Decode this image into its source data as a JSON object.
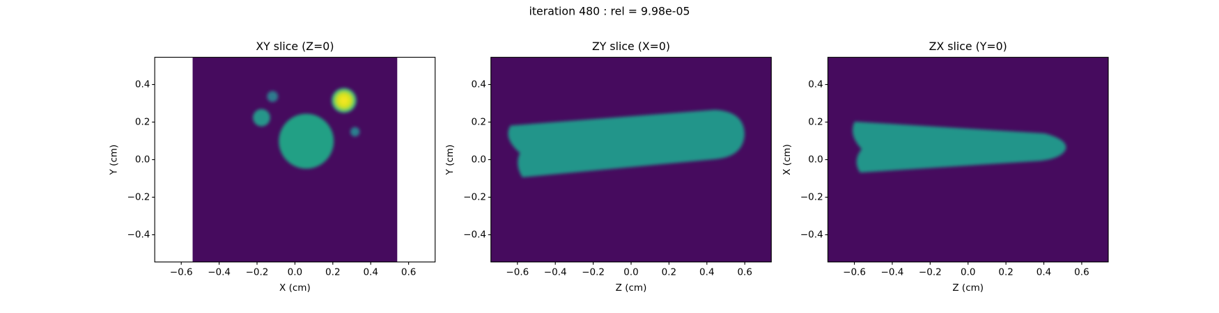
{
  "title": "iteration 480 : rel = 9.98e-05",
  "chart_data": [
    {
      "type": "image",
      "title": "XY slice (Z=0)",
      "xlabel": "X (cm)",
      "ylabel": "Y (cm)",
      "xlim": [
        -0.74,
        0.74
      ],
      "ylim": [
        -0.545,
        0.545
      ],
      "extent": [
        -0.54,
        0.54,
        -0.545,
        0.545
      ],
      "xticks": [
        {
          "value": -0.6,
          "label": "−0.6"
        },
        {
          "value": -0.4,
          "label": "−0.4"
        },
        {
          "value": -0.2,
          "label": "−0.2"
        },
        {
          "value": 0,
          "label": "0.0"
        },
        0.2,
        0.4,
        0.6
      ],
      "yticks": [
        {
          "value": -0.4,
          "label": "−0.4"
        },
        {
          "value": -0.2,
          "label": "−0.2"
        },
        {
          "value": 0,
          "label": "0.0"
        },
        0.2,
        0.4
      ]
    },
    {
      "type": "image",
      "title": "ZY slice (X=0)",
      "xlabel": "Z (cm)",
      "ylabel": "Y (cm)",
      "xlim": [
        -0.74,
        0.74
      ],
      "ylim": [
        -0.545,
        0.545
      ],
      "extent": [
        -0.74,
        0.74,
        -0.545,
        0.545
      ],
      "xticks": [
        {
          "value": -0.6,
          "label": "−0.6"
        },
        {
          "value": -0.4,
          "label": "−0.4"
        },
        {
          "value": -0.2,
          "label": "−0.2"
        },
        {
          "value": 0,
          "label": "0.0"
        },
        0.2,
        0.4,
        0.6
      ],
      "yticks": [
        {
          "value": -0.4,
          "label": "−0.4"
        },
        {
          "value": -0.2,
          "label": "−0.2"
        },
        {
          "value": 0,
          "label": "0.0"
        },
        0.2,
        0.4
      ]
    },
    {
      "type": "image",
      "title": "ZX slice (Y=0)",
      "xlabel": "Z (cm)",
      "ylabel": "X (cm)",
      "xlim": [
        -0.74,
        0.74
      ],
      "ylim": [
        -0.545,
        0.545
      ],
      "extent": [
        -0.74,
        0.74,
        -0.545,
        0.545
      ],
      "xticks": [
        {
          "value": -0.6,
          "label": "−0.6"
        },
        {
          "value": -0.4,
          "label": "−0.4"
        },
        {
          "value": -0.2,
          "label": "−0.2"
        },
        {
          "value": 0,
          "label": "0.0"
        },
        0.2,
        0.4,
        0.6
      ],
      "yticks": [
        {
          "value": -0.4,
          "label": "−0.4"
        },
        {
          "value": -0.2,
          "label": "−0.2"
        },
        {
          "value": 0,
          "label": "0.0"
        },
        0.2,
        0.4
      ]
    }
  ]
}
